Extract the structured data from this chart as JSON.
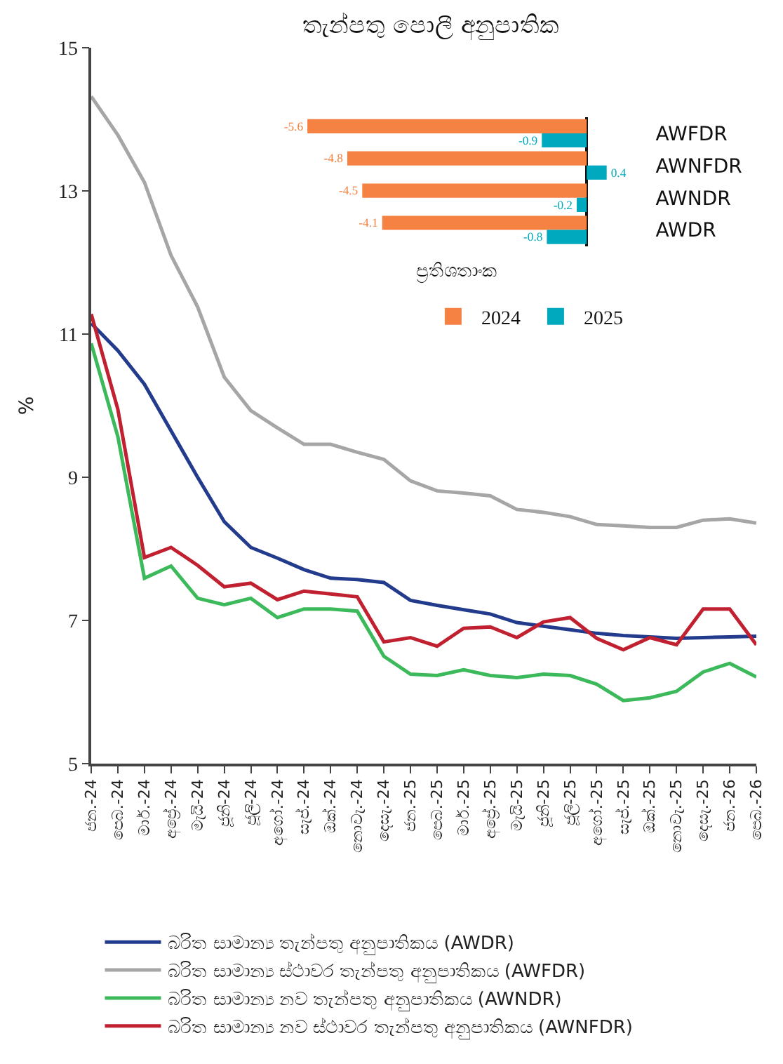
{
  "chart_data": [
    {
      "type": "line",
      "title": "තැන්පතු පොලී අනුපාතික",
      "ylabel": "%",
      "categories": [
        "ජන.-24",
        "පෙබ.-24",
        "මාර්.-24",
        "අප්‍රේ.-24",
        "මැයි-24",
        "ජූනි-24",
        "ජූලි-24",
        "අගෝ.-24",
        "සැප්.-24",
        "ඔක්.-24",
        "නොවැ.-24",
        "දෙසැ.-24",
        "ජන.-25",
        "පෙබ.-25",
        "මාර්.-25",
        "අප්‍රේ.-25",
        "මැයි-25",
        "ජූනි-25",
        "ජූලි-25",
        "අගෝ.-25",
        "සැප්.-25",
        "ඔක්.-25",
        "නොවැ.-25",
        "දෙසැ.-25",
        "ජන.-26",
        "පෙබ.-26"
      ],
      "series": [
        {
          "name": "බරිත සාමාන්‍ය තැන්පතු අනුපාතිකය (AWDR)",
          "color": "#233b8c",
          "values": [
            11.15,
            10.77,
            10.3,
            9.65,
            9.0,
            8.38,
            8.02,
            7.87,
            7.71,
            7.59,
            7.57,
            7.53,
            7.28,
            7.21,
            7.15,
            7.09,
            6.97,
            6.92,
            6.87,
            6.82,
            6.79,
            6.77,
            6.75,
            6.76,
            6.77,
            6.78
          ]
        },
        {
          "name": "බරිත සාමාන්‍ය ස්ථාවර තැන්පතු අනුපාතිකය (AWFDR)",
          "color": "#a6a6a6",
          "values": [
            14.32,
            13.78,
            13.12,
            12.1,
            11.38,
            10.4,
            9.93,
            9.69,
            9.46,
            9.46,
            9.35,
            9.25,
            8.95,
            8.81,
            8.78,
            8.74,
            8.55,
            8.51,
            8.45,
            8.34,
            8.32,
            8.3,
            8.3,
            8.4,
            8.42,
            8.36
          ]
        },
        {
          "name": "බරිත සාමාන්‍ය නව තැන්පතු අනුපාතිකය (AWNDR)",
          "color": "#3cb95a",
          "values": [
            10.87,
            9.57,
            7.59,
            7.76,
            7.31,
            7.22,
            7.31,
            7.04,
            7.16,
            7.16,
            7.13,
            6.5,
            6.25,
            6.23,
            6.31,
            6.23,
            6.2,
            6.25,
            6.23,
            6.11,
            5.88,
            5.92,
            6.01,
            6.28,
            6.4,
            6.21
          ]
        },
        {
          "name": "බරිත සාමාන්‍ය නව ස්ථාවර තැන්පතු අනුපාතිකය (AWNFDR)",
          "color": "#c0202f",
          "values": [
            11.28,
            9.95,
            7.88,
            8.02,
            7.77,
            7.47,
            7.52,
            7.29,
            7.41,
            7.37,
            7.33,
            6.7,
            6.76,
            6.64,
            6.89,
            6.91,
            6.76,
            6.98,
            7.04,
            6.75,
            6.59,
            6.76,
            6.66,
            7.16,
            7.16,
            6.66
          ]
        }
      ],
      "ylim": [
        5,
        15
      ],
      "yticks": [
        5,
        7,
        9,
        11,
        13,
        15
      ],
      "legend": "bottom",
      "marker": "none",
      "line_style": "solid"
    },
    {
      "type": "bar",
      "orientation": "horizontal",
      "xlabel": "ප්‍රතිශතාංක",
      "categories": [
        "AWFDR",
        "AWNFDR",
        "AWNDR",
        "AWDR"
      ],
      "series": [
        {
          "name": "2024",
          "color": "#f58142",
          "values": [
            -5.6,
            -4.8,
            -4.5,
            -4.1
          ]
        },
        {
          "name": "2025",
          "color": "#00a9bd",
          "values": [
            -0.9,
            0.4,
            -0.2,
            -0.8
          ]
        }
      ],
      "data_labels": true,
      "tick_labels": "y",
      "legend": "bottom"
    }
  ]
}
